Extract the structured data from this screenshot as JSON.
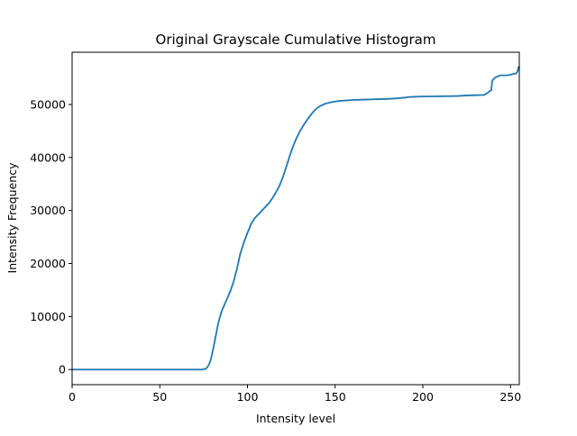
{
  "chart_data": {
    "type": "line",
    "title": "Original Grayscale Cumulative Histogram",
    "xlabel": "Intensity level",
    "ylabel": "Intensity Frequency",
    "xlim": [
      0,
      255
    ],
    "ylim": [
      -2850,
      59850
    ],
    "x_ticks": [
      0,
      50,
      100,
      150,
      200,
      250
    ],
    "y_ticks": [
      0,
      10000,
      20000,
      30000,
      40000,
      50000
    ],
    "grid": false,
    "legend": "none",
    "series": [
      {
        "color": "#1f77b4",
        "x": [
          0,
          10,
          20,
          30,
          40,
          50,
          60,
          70,
          74,
          76,
          77,
          78,
          79,
          80,
          81,
          82,
          83,
          84,
          85,
          86,
          88,
          90,
          92,
          94,
          96,
          98,
          100,
          102,
          104,
          106,
          108,
          110,
          112,
          114,
          116,
          118,
          120,
          122,
          124,
          126,
          128,
          130,
          132,
          134,
          136,
          138,
          140,
          142,
          144,
          146,
          148,
          150,
          152,
          154,
          156,
          158,
          160,
          165,
          170,
          175,
          180,
          185,
          190,
          192,
          195,
          200,
          210,
          220,
          225,
          230,
          235,
          236,
          237,
          238,
          239,
          239.5,
          240,
          241,
          242,
          243,
          244,
          245,
          246,
          248,
          250,
          251,
          252,
          253,
          254,
          254.5,
          255
        ],
        "y": [
          0,
          0,
          0,
          0,
          0,
          0,
          0,
          0,
          0,
          100,
          400,
          900,
          1800,
          3200,
          4800,
          6500,
          8200,
          9600,
          10700,
          11600,
          13100,
          14600,
          16500,
          19000,
          22000,
          24000,
          25800,
          27400,
          28500,
          29200,
          29900,
          30600,
          31300,
          32200,
          33300,
          34500,
          36100,
          38100,
          40200,
          42100,
          43700,
          45000,
          46100,
          47100,
          48000,
          48800,
          49400,
          49800,
          50100,
          50300,
          50450,
          50550,
          50650,
          50700,
          50750,
          50800,
          50850,
          50900,
          50950,
          51000,
          51050,
          51150,
          51300,
          51400,
          51450,
          51500,
          51550,
          51600,
          51700,
          51750,
          51800,
          52000,
          52200,
          52500,
          52700,
          54300,
          54700,
          55000,
          55200,
          55300,
          55500,
          55500,
          55500,
          55500,
          55600,
          55700,
          55800,
          55800,
          56200,
          57000,
          57100
        ]
      }
    ]
  }
}
